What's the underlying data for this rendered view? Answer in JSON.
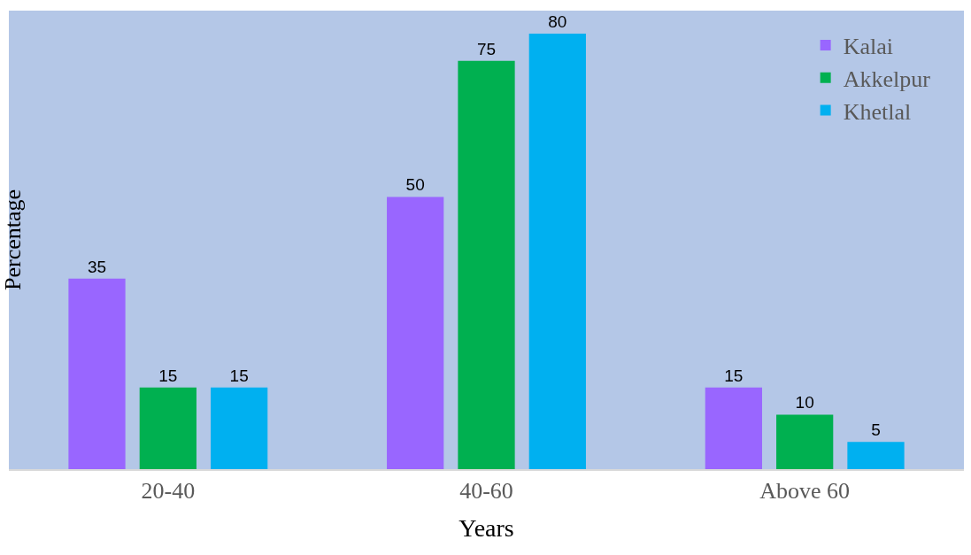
{
  "chart_data": {
    "type": "bar",
    "xlabel": "Years",
    "ylabel": "Percentage",
    "categories": [
      "20-40",
      "40-60",
      "Above 60"
    ],
    "series": [
      {
        "name": "Kalai",
        "color": "#9966ff",
        "values": [
          35,
          50,
          15
        ]
      },
      {
        "name": "Akkelpur",
        "color": "#00b050",
        "values": [
          15,
          75,
          10
        ]
      },
      {
        "name": "Khetlal",
        "color": "#00b0f0",
        "values": [
          15,
          80,
          5
        ]
      }
    ],
    "data_labels": true,
    "legend": "top right",
    "grid": false
  }
}
